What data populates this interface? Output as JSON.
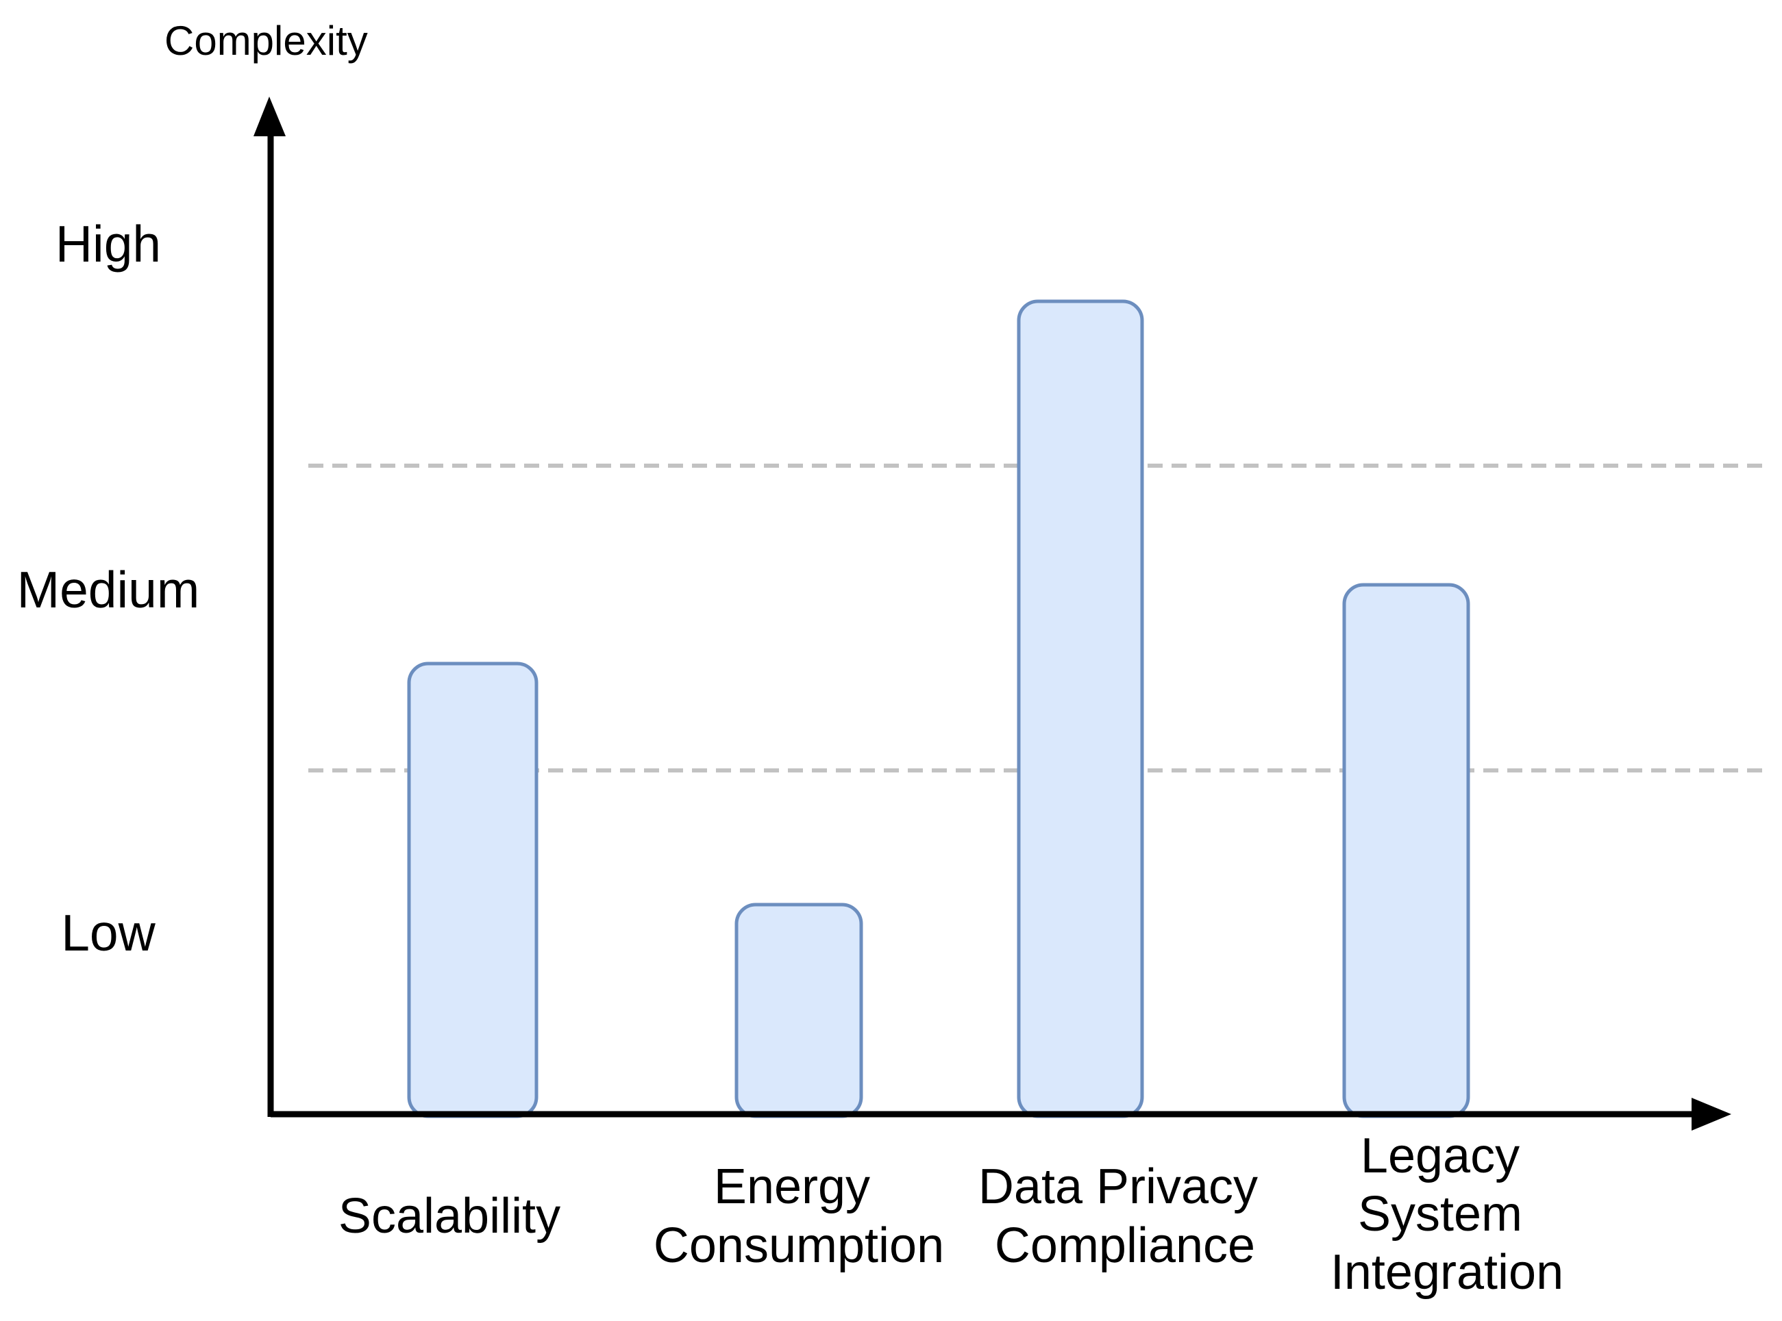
{
  "chart_data": {
    "type": "bar",
    "title": "",
    "xlabel": "",
    "ylabel": "Complexity",
    "categories": [
      "Scalability",
      "Energy Consumption",
      "Data Privacy Compliance",
      "Legacy System Integration"
    ],
    "categories_lines": [
      [
        "Scalability"
      ],
      [
        "Energy",
        "Consumption"
      ],
      [
        "Data Privacy",
        "Compliance"
      ],
      [
        "Legacy",
        "System",
        "Integration"
      ]
    ],
    "values": [
      1.35,
      0.61,
      2.54,
      1.61
    ],
    "value_axis": {
      "type": "qualitative",
      "range": [
        0,
        3
      ],
      "tick_labels": [
        "Low",
        "Medium",
        "High"
      ],
      "gridlines_at": [
        1,
        2
      ],
      "grid_style": "dashed",
      "note": "Qualitative complexity scale; dashed gridlines mark the Low/Medium (1) and Medium/High (2) boundaries"
    },
    "legend": "none",
    "colors": {
      "bar_fill": "#dae8fc",
      "bar_stroke": "#6c8ebf",
      "grid": "#c2c2c2",
      "axis": "#000000",
      "text": "#000000"
    }
  }
}
